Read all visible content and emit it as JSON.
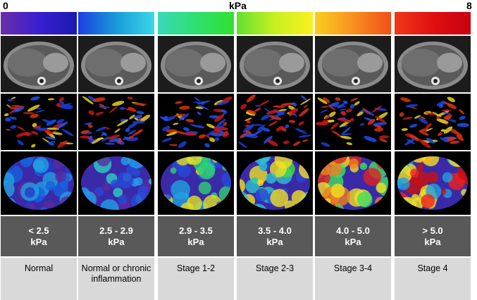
{
  "scale": {
    "min": "0",
    "unit": "kPa",
    "max": "8"
  },
  "columns": [
    {
      "range": "< 2.5",
      "unit": "kPa",
      "stage": "Normal",
      "grad": [
        "#6a2fa8",
        "#3a1fd0",
        "#1a1ab0"
      ]
    },
    {
      "range": "2.5 - 2.9",
      "unit": "kPa",
      "stage": "Normal or chronic inflammation",
      "grad": [
        "#1a40e0",
        "#1a9ad8",
        "#3ad8e8"
      ]
    },
    {
      "range": "2.9 - 3.5",
      "unit": "kPa",
      "stage": "Stage 1-2",
      "grad": [
        "#3ad8b8",
        "#2ee070",
        "#30e030"
      ]
    },
    {
      "range": "3.5 - 4.0",
      "unit": "kPa",
      "stage": "Stage  2-3",
      "grad": [
        "#60e030",
        "#c8f020",
        "#f8f020"
      ]
    },
    {
      "range": "4.0 - 5.0",
      "unit": "kPa",
      "stage": "Stage 3-4",
      "grad": [
        "#f8d020",
        "#f89020",
        "#f05018"
      ]
    },
    {
      "range": "> 5.0",
      "unit": "kPa",
      "stage": "Stage 4",
      "grad": [
        "#f03818",
        "#e01010",
        "#c80010"
      ]
    }
  ]
}
